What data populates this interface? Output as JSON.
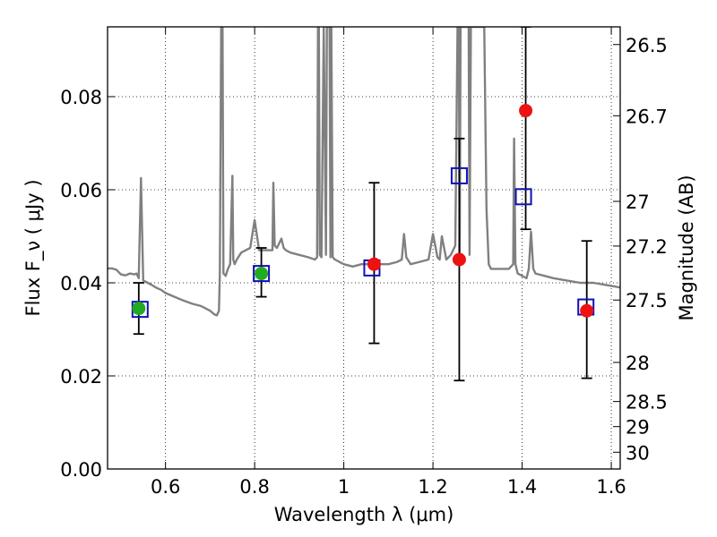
{
  "chart_data": {
    "type": "line",
    "title": "",
    "xlabel": "Wavelength λ (μm)",
    "ylabel": "Flux F_ν ( μJy )",
    "ylabel_right": "Magnitude (AB)",
    "xlim": [
      0.47,
      1.62
    ],
    "ylim": [
      0.0,
      0.095
    ],
    "grid": true,
    "x_ticks": [
      0.6,
      0.8,
      1.0,
      1.2,
      1.4,
      1.6
    ],
    "x_tick_labels": [
      "0.6",
      "0.8",
      "1",
      "1.2",
      "1.4",
      "1.6"
    ],
    "y_ticks": [
      0.0,
      0.02,
      0.04,
      0.06,
      0.08
    ],
    "y_tick_labels": [
      "0.00",
      "0.02",
      "0.04",
      "0.06",
      "0.08"
    ],
    "y2_ticks": [
      {
        "label": "26.5",
        "flux": 0.0912
      },
      {
        "label": "26.7",
        "flux": 0.0759
      },
      {
        "label": "27",
        "flux": 0.0575
      },
      {
        "label": "27.2",
        "flux": 0.0479
      },
      {
        "label": "27.5",
        "flux": 0.0363
      },
      {
        "label": "28",
        "flux": 0.0229
      },
      {
        "label": "28.5",
        "flux": 0.0145
      },
      {
        "label": "29",
        "flux": 0.0091
      },
      {
        "label": "30",
        "flux": 0.0036
      }
    ],
    "spectrum": {
      "name": "model spectrum",
      "color": "#808080",
      "x": [
        0.47,
        0.48,
        0.49,
        0.5,
        0.51,
        0.52,
        0.53,
        0.535,
        0.54,
        0.545,
        0.55,
        0.56,
        0.57,
        0.58,
        0.59,
        0.6,
        0.62,
        0.64,
        0.66,
        0.68,
        0.7,
        0.71,
        0.715,
        0.72,
        0.722,
        0.725,
        0.728,
        0.73,
        0.735,
        0.74,
        0.745,
        0.75,
        0.752,
        0.755,
        0.76,
        0.77,
        0.78,
        0.79,
        0.8,
        0.81,
        0.82,
        0.83,
        0.84,
        0.842,
        0.845,
        0.85,
        0.86,
        0.865,
        0.87,
        0.88,
        0.9,
        0.92,
        0.935,
        0.94,
        0.942,
        0.944,
        0.946,
        0.95,
        0.955,
        0.96,
        0.962,
        0.965,
        0.968,
        0.97,
        0.972,
        0.975,
        0.98,
        1.0,
        1.02,
        1.04,
        1.06,
        1.08,
        1.1,
        1.12,
        1.13,
        1.135,
        1.14,
        1.15,
        1.17,
        1.19,
        1.2,
        1.21,
        1.215,
        1.22,
        1.23,
        1.24,
        1.25,
        1.255,
        1.258,
        1.26,
        1.262,
        1.265,
        1.27,
        1.28,
        1.282,
        1.285,
        1.29,
        1.3,
        1.31,
        1.315,
        1.32,
        1.325,
        1.33,
        1.35,
        1.37,
        1.38,
        1.382,
        1.385,
        1.39,
        1.4,
        1.41,
        1.415,
        1.42,
        1.425,
        1.43,
        1.45,
        1.47,
        1.5,
        1.53,
        1.56,
        1.59,
        1.62
      ],
      "y": [
        0.0431,
        0.0431,
        0.0428,
        0.0418,
        0.0416,
        0.042,
        0.0418,
        0.042,
        0.041,
        0.0625,
        0.0405,
        0.04,
        0.0395,
        0.0389,
        0.0385,
        0.0378,
        0.037,
        0.0362,
        0.0355,
        0.035,
        0.034,
        0.0332,
        0.033,
        0.034,
        0.042,
        0.095,
        0.095,
        0.042,
        0.0415,
        0.043,
        0.044,
        0.063,
        0.045,
        0.044,
        0.045,
        0.0465,
        0.047,
        0.0475,
        0.0535,
        0.047,
        0.047,
        0.047,
        0.047,
        0.0615,
        0.048,
        0.0475,
        0.0495,
        0.0475,
        0.047,
        0.0465,
        0.046,
        0.0455,
        0.045,
        0.0455,
        0.095,
        0.095,
        0.046,
        0.0455,
        0.095,
        0.046,
        0.095,
        0.095,
        0.095,
        0.0455,
        0.095,
        0.0455,
        0.045,
        0.044,
        0.0435,
        0.044,
        0.044,
        0.044,
        0.044,
        0.0445,
        0.045,
        0.0505,
        0.0455,
        0.044,
        0.0445,
        0.045,
        0.0505,
        0.0455,
        0.045,
        0.05,
        0.045,
        0.046,
        0.048,
        0.095,
        0.095,
        0.046,
        0.095,
        0.095,
        0.095,
        0.095,
        0.046,
        0.095,
        0.095,
        0.095,
        0.095,
        0.095,
        0.056,
        0.044,
        0.043,
        0.043,
        0.043,
        0.044,
        0.071,
        0.044,
        0.042,
        0.0415,
        0.041,
        0.043,
        0.051,
        0.043,
        0.042,
        0.0415,
        0.041,
        0.0405,
        0.04,
        0.04,
        0.0395,
        0.039
      ]
    },
    "points": [
      {
        "name": "green point 1",
        "x": 0.54,
        "y": 0.0345,
        "color": "#22aa22",
        "yerr_low": 0.029,
        "yerr_high": 0.04
      },
      {
        "name": "green point 2",
        "x": 0.815,
        "y": 0.042,
        "color": "#22aa22",
        "yerr_low": 0.037,
        "yerr_high": 0.0475
      },
      {
        "name": "red point 1",
        "x": 1.068,
        "y": 0.044,
        "color": "#ee1111",
        "yerr_low": 0.027,
        "yerr_high": 0.0615
      },
      {
        "name": "red point 2",
        "x": 1.259,
        "y": 0.045,
        "color": "#ee1111",
        "yerr_low": 0.019,
        "yerr_high": 0.071
      },
      {
        "name": "red point 3",
        "x": 1.408,
        "y": 0.077,
        "color": "#ee1111",
        "yerr_low": 0.0515,
        "yerr_high": 0.095
      },
      {
        "name": "red point 4",
        "x": 1.545,
        "y": 0.034,
        "color": "#ee1111",
        "yerr_low": 0.0195,
        "yerr_high": 0.049
      }
    ],
    "model_boxes": [
      {
        "x": 0.543,
        "y": 0.0343,
        "color": "#1010bb"
      },
      {
        "x": 0.815,
        "y": 0.042,
        "color": "#1010bb"
      },
      {
        "x": 1.063,
        "y": 0.0432,
        "color": "#1010bb"
      },
      {
        "x": 1.259,
        "y": 0.063,
        "color": "#1010bb"
      },
      {
        "x": 1.403,
        "y": 0.0585,
        "color": "#1010bb"
      },
      {
        "x": 1.543,
        "y": 0.0348,
        "color": "#1010bb"
      }
    ]
  }
}
